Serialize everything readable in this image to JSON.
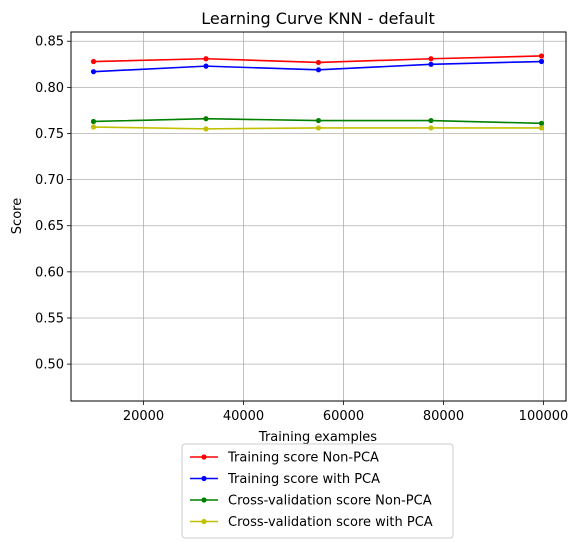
{
  "chart_data": {
    "type": "line",
    "title": "Learning Curve KNN - default",
    "xlabel": "Training examples",
    "ylabel": "Score",
    "xlim": [
      5500,
      104500
    ],
    "ylim": [
      0.46,
      0.86
    ],
    "xticks": [
      20000,
      40000,
      60000,
      80000,
      100000
    ],
    "yticks": [
      0.5,
      0.55,
      0.6,
      0.65,
      0.7,
      0.75,
      0.8,
      0.85
    ],
    "grid": true,
    "legend_position": "below",
    "x": [
      10000,
      32500,
      55000,
      77500,
      99600
    ],
    "series": [
      {
        "name": "Training score Non-PCA",
        "color": "#ff0000",
        "values": [
          0.828,
          0.831,
          0.827,
          0.831,
          0.834
        ]
      },
      {
        "name": "Training score with PCA",
        "color": "#0000ff",
        "values": [
          0.817,
          0.823,
          0.819,
          0.825,
          0.828
        ]
      },
      {
        "name": "Cross-validation score Non-PCA",
        "color": "#008000",
        "values": [
          0.763,
          0.766,
          0.764,
          0.764,
          0.761
        ]
      },
      {
        "name": "Cross-validation score with PCA",
        "color": "#c0c000",
        "values": [
          0.757,
          0.755,
          0.756,
          0.756,
          0.756
        ]
      }
    ]
  }
}
